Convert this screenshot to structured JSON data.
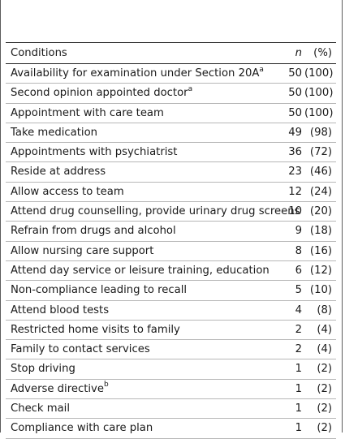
{
  "header": {
    "conditions": "Conditions",
    "n": "n",
    "pct": "(%)"
  },
  "rows": [
    {
      "label": "Availability for examination under Section 20A",
      "sup": "a",
      "n": "50",
      "pct": "(100)"
    },
    {
      "label": "Second opinion appointed doctor",
      "sup": "a",
      "n": "50",
      "pct": "(100)"
    },
    {
      "label": "Appointment with care team",
      "sup": "",
      "n": "50",
      "pct": "(100)"
    },
    {
      "label": "Take medication",
      "sup": "",
      "n": "49",
      "pct": "(98)"
    },
    {
      "label": "Appointments with psychiatrist",
      "sup": "",
      "n": "36",
      "pct": "(72)"
    },
    {
      "label": "Reside at address",
      "sup": "",
      "n": "23",
      "pct": "(46)"
    },
    {
      "label": "Allow access to team",
      "sup": "",
      "n": "12",
      "pct": "(24)"
    },
    {
      "label": "Attend drug counselling, provide urinary drug screens",
      "sup": "",
      "n": "10",
      "pct": "(20)"
    },
    {
      "label": "Refrain from drugs and alcohol",
      "sup": "",
      "n": "9",
      "pct": "(18)"
    },
    {
      "label": "Allow nursing care support",
      "sup": "",
      "n": "8",
      "pct": "(16)"
    },
    {
      "label": "Attend day service or leisure training, education",
      "sup": "",
      "n": "6",
      "pct": "(12)"
    },
    {
      "label": "Non-compliance leading to recall",
      "sup": "",
      "n": "5",
      "pct": "(10)"
    },
    {
      "label": "Attend blood tests",
      "sup": "",
      "n": "4",
      "pct": "(8)"
    },
    {
      "label": "Restricted home visits to family",
      "sup": "",
      "n": "2",
      "pct": "(4)"
    },
    {
      "label": "Family to contact services",
      "sup": "",
      "n": "2",
      "pct": "(4)"
    },
    {
      "label": "Stop driving",
      "sup": "",
      "n": "1",
      "pct": "(2)"
    },
    {
      "label": "Adverse directive",
      "sup": "b",
      "n": "1",
      "pct": "(2)"
    },
    {
      "label": "Check mail",
      "sup": "",
      "n": "1",
      "pct": "(2)"
    },
    {
      "label": "Compliance with care plan",
      "sup": "",
      "n": "1",
      "pct": "(2)"
    }
  ]
}
